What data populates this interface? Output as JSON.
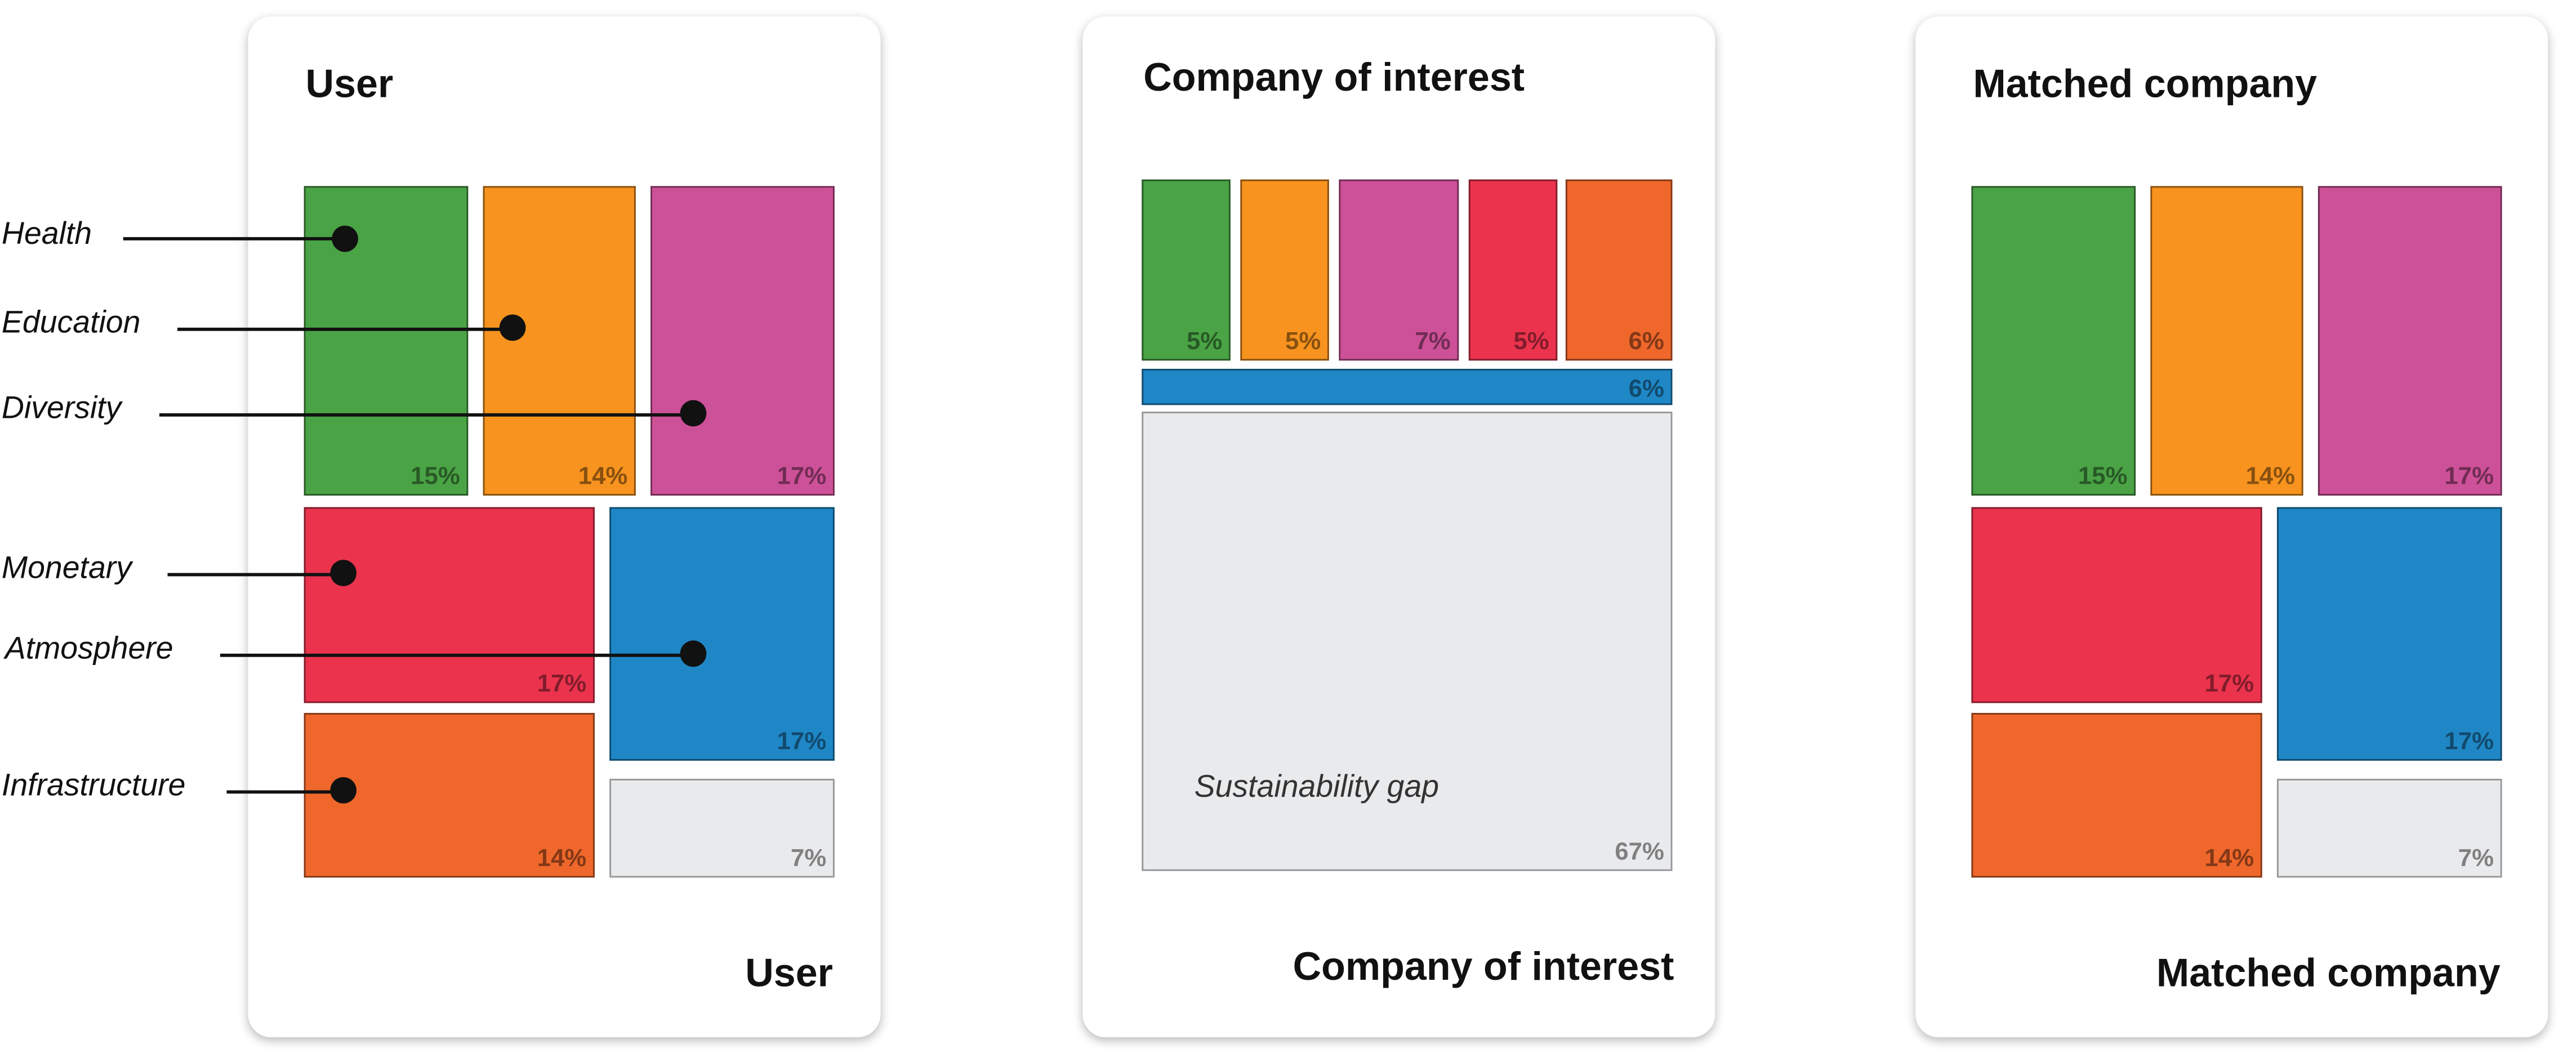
{
  "colors": {
    "Health": "#4aa345",
    "Education": "#f7931e",
    "Diversity": "#cd5198",
    "Monetary": "#eb334e",
    "Atmosphere": "#1f87c6",
    "Infrastructure": "#ef672b",
    "gap": "#e9eaec"
  },
  "legend": [
    "Health",
    "Education",
    "Diversity",
    "Monetary",
    "Atmosphere",
    "Infrastructure"
  ],
  "panels": [
    {
      "id": "user",
      "title": "User",
      "footer": "User",
      "tiles": [
        {
          "category": "Health",
          "value": "15%"
        },
        {
          "category": "Education",
          "value": "14%"
        },
        {
          "category": "Diversity",
          "value": "17%"
        },
        {
          "category": "Monetary",
          "value": "17%"
        },
        {
          "category": "Atmosphere",
          "value": "17%"
        },
        {
          "category": "Infrastructure",
          "value": "14%"
        },
        {
          "category": "gap",
          "value": "7%"
        }
      ]
    },
    {
      "id": "company",
      "title": "Company of interest",
      "footer": "Company of interest",
      "gap_label": "Sustainability gap",
      "tiles": [
        {
          "category": "Health",
          "value": "5%"
        },
        {
          "category": "Education",
          "value": "5%"
        },
        {
          "category": "Diversity",
          "value": "7%"
        },
        {
          "category": "Monetary",
          "value": "5%"
        },
        {
          "category": "Infrastructure",
          "value": "6%"
        },
        {
          "category": "Atmosphere",
          "value": "6%"
        },
        {
          "category": "gap",
          "value": "67%"
        }
      ]
    },
    {
      "id": "matched",
      "title": "Matched company",
      "footer": "Matched company",
      "tiles": [
        {
          "category": "Health",
          "value": "15%"
        },
        {
          "category": "Education",
          "value": "14%"
        },
        {
          "category": "Diversity",
          "value": "17%"
        },
        {
          "category": "Monetary",
          "value": "17%"
        },
        {
          "category": "Atmosphere",
          "value": "17%"
        },
        {
          "category": "Infrastructure",
          "value": "14%"
        },
        {
          "category": "gap",
          "value": "7%"
        }
      ]
    }
  ]
}
